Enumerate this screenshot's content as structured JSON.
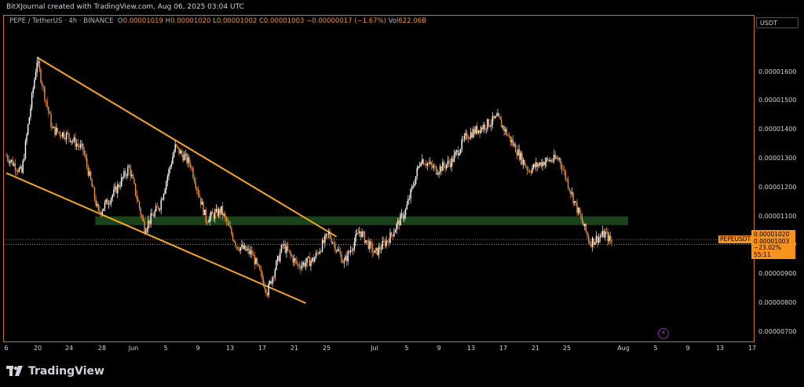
{
  "topbar": {
    "text": "BitXJournal created with TradingView.com, Aug 06, 2025 03:04 UTC"
  },
  "legend": {
    "symbol": "PEPE / TetherUS · 4h · BINANCE",
    "o_label": "O",
    "o": "0.00001019",
    "h_label": "H",
    "h": "0.00001020",
    "l_label": "L",
    "l": "0.00001002",
    "c_label": "C",
    "c": "0.00001003",
    "change": "−0.00000017 (−1.67%)",
    "vol_label": "Vol",
    "vol": "622.06B"
  },
  "yaxis": {
    "currency": "USDT",
    "ticks": [
      "0.00001600",
      "0.00001500",
      "0.00001400",
      "0.00001300",
      "0.00001200",
      "0.00001100",
      "0.00001000",
      "0.00000900",
      "0.00000800",
      "0.00000700"
    ]
  },
  "xaxis": {
    "ticks": [
      "6",
      "20",
      "24",
      "28",
      "Jun",
      "5",
      "9",
      "13",
      "17",
      "21",
      "25",
      "Jul",
      "5",
      "9",
      "13",
      "17",
      "21",
      "25",
      "Aug",
      "5",
      "9",
      "13",
      "17"
    ]
  },
  "price_tag": {
    "symbol": "PEPEUSDT",
    "upper": "0.00001020",
    "price": "0.00001003",
    "change_pct": "−23.02%",
    "countdown": "55:11"
  },
  "footer": {
    "brand": "TradingView"
  },
  "colors": {
    "accent": "#f7931a",
    "up": "#ffffff",
    "down": "#f0913c",
    "zone": "#1e4a1e",
    "channel": "#f5a623"
  },
  "icons": {
    "replay": "lightning-icon",
    "brand": "tradingview-logo-icon"
  },
  "chart_data": {
    "type": "candlestick",
    "symbol": "PEPE / TetherUS",
    "interval": "4h",
    "exchange": "BINANCE",
    "ylim": [
      6.7e-06,
      1.74e-05
    ],
    "x_ticks": [
      "6",
      "20",
      "24",
      "28",
      "Jun",
      "5",
      "9",
      "13",
      "17",
      "21",
      "25",
      "Jul",
      "5",
      "9",
      "13",
      "17",
      "21",
      "25",
      "Aug",
      "5",
      "9",
      "13",
      "17"
    ],
    "price_path": [
      [
        "May 19",
        1.31e-05
      ],
      [
        "May 21",
        1.25e-05
      ],
      [
        "May 23",
        1.64e-05
      ],
      [
        "May 25",
        1.4e-05
      ],
      [
        "May 27",
        1.38e-05
      ],
      [
        "May 29",
        1.33e-05
      ],
      [
        "May 31",
        1.11e-05
      ],
      [
        "Jun 2",
        1.18e-05
      ],
      [
        "Jun 4",
        1.27e-05
      ],
      [
        "Jun 6",
        1.06e-05
      ],
      [
        "Jun 8",
        1.14e-05
      ],
      [
        "Jun 10",
        1.34e-05
      ],
      [
        "Jun 12",
        1.28e-05
      ],
      [
        "Jun 14",
        1.09e-05
      ],
      [
        "Jun 16",
        1.12e-05
      ],
      [
        "Jun 18",
        1e-05
      ],
      [
        "Jun 20",
        9.7e-06
      ],
      [
        "Jun 22",
        8.4e-06
      ],
      [
        "Jun 24",
        1e-05
      ],
      [
        "Jun 26",
        9.3e-06
      ],
      [
        "Jun 28",
        9.5e-06
      ],
      [
        "Jun 30",
        1.04e-05
      ],
      [
        "Jul 2",
        9.4e-06
      ],
      [
        "Jul 4",
        1.05e-05
      ],
      [
        "Jul 6",
        9.7e-06
      ],
      [
        "Jul 8",
        1.03e-05
      ],
      [
        "Jul 10",
        1.12e-05
      ],
      [
        "Jul 12",
        1.3e-05
      ],
      [
        "Jul 14",
        1.26e-05
      ],
      [
        "Jul 16",
        1.29e-05
      ],
      [
        "Jul 18",
        1.38e-05
      ],
      [
        "Jul 20",
        1.41e-05
      ],
      [
        "Jul 22",
        1.44e-05
      ],
      [
        "Jul 24",
        1.35e-05
      ],
      [
        "Jul 26",
        1.26e-05
      ],
      [
        "Jul 28",
        1.29e-05
      ],
      [
        "Jul 30",
        1.3e-05
      ],
      [
        "Aug 1",
        1.15e-05
      ],
      [
        "Aug 3",
        1.01e-05
      ],
      [
        "Aug 5",
        1.04e-05
      ],
      [
        "Aug 6",
        1.003e-05
      ]
    ],
    "support_zone": [
      1.07e-05,
      1.1e-05
    ],
    "channel_upper": [
      [
        "May 23",
        1.65e-05
      ],
      [
        "Jul 1",
        1.03e-05
      ]
    ],
    "channel_lower": [
      [
        "May 19",
        1.25e-05
      ],
      [
        "Jun 27",
        8e-06
      ]
    ],
    "last_price": 1.003e-05
  }
}
